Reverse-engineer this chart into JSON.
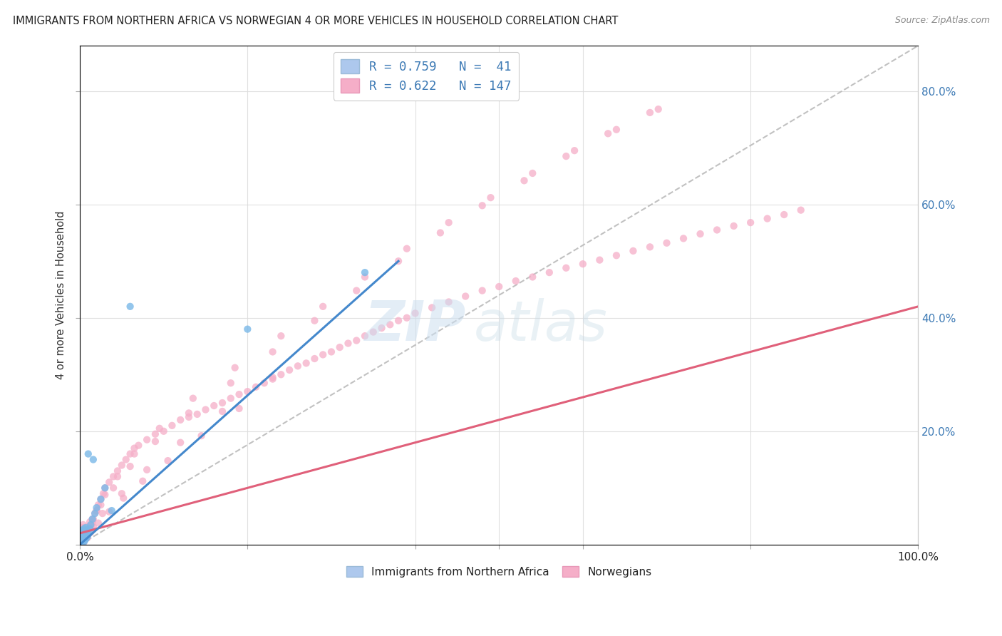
{
  "title": "IMMIGRANTS FROM NORTHERN AFRICA VS NORWEGIAN 4 OR MORE VEHICLES IN HOUSEHOLD CORRELATION CHART",
  "source": "Source: ZipAtlas.com",
  "ylabel": "4 or more Vehicles in Household",
  "yticks": [
    "",
    "20.0%",
    "40.0%",
    "60.0%",
    "80.0%"
  ],
  "ytick_vals": [
    0.0,
    0.2,
    0.4,
    0.6,
    0.8
  ],
  "xlim": [
    0,
    1.0
  ],
  "ylim": [
    0,
    0.88
  ],
  "legend1_label": "R = 0.759   N =  41",
  "legend2_label": "R = 0.622   N = 147",
  "legend_color1": "#adc8ed",
  "legend_color2": "#f5aec8",
  "scatter_color1": "#7ab8e8",
  "scatter_color2": "#f5aec8",
  "line_color1": "#4488cc",
  "line_color2": "#e0607a",
  "diagonal_color": "#bbbbbb",
  "watermark_zip": "ZIP",
  "watermark_atlas": "atlas",
  "background_color": "#ffffff",
  "immigrants_x": [
    0.001,
    0.001,
    0.002,
    0.002,
    0.002,
    0.003,
    0.003,
    0.003,
    0.003,
    0.004,
    0.004,
    0.004,
    0.005,
    0.005,
    0.005,
    0.005,
    0.006,
    0.006,
    0.006,
    0.007,
    0.007,
    0.007,
    0.008,
    0.008,
    0.009,
    0.009,
    0.01,
    0.01,
    0.011,
    0.012,
    0.013,
    0.015,
    0.016,
    0.018,
    0.02,
    0.025,
    0.03,
    0.038,
    0.06,
    0.2,
    0.34
  ],
  "immigrants_y": [
    0.005,
    0.01,
    0.005,
    0.01,
    0.02,
    0.005,
    0.01,
    0.015,
    0.025,
    0.008,
    0.015,
    0.022,
    0.005,
    0.012,
    0.018,
    0.028,
    0.008,
    0.015,
    0.025,
    0.01,
    0.018,
    0.03,
    0.012,
    0.02,
    0.015,
    0.025,
    0.018,
    0.16,
    0.022,
    0.028,
    0.035,
    0.045,
    0.15,
    0.055,
    0.065,
    0.08,
    0.1,
    0.06,
    0.42,
    0.38,
    0.48
  ],
  "norwegians_x": [
    0.001,
    0.001,
    0.002,
    0.002,
    0.002,
    0.003,
    0.003,
    0.003,
    0.004,
    0.004,
    0.004,
    0.005,
    0.005,
    0.005,
    0.006,
    0.006,
    0.007,
    0.007,
    0.008,
    0.008,
    0.009,
    0.009,
    0.01,
    0.01,
    0.011,
    0.012,
    0.013,
    0.014,
    0.015,
    0.016,
    0.018,
    0.02,
    0.022,
    0.025,
    0.028,
    0.03,
    0.035,
    0.04,
    0.045,
    0.05,
    0.055,
    0.06,
    0.065,
    0.07,
    0.08,
    0.09,
    0.1,
    0.11,
    0.12,
    0.13,
    0.14,
    0.15,
    0.16,
    0.17,
    0.18,
    0.19,
    0.2,
    0.21,
    0.22,
    0.23,
    0.24,
    0.25,
    0.26,
    0.27,
    0.28,
    0.29,
    0.3,
    0.31,
    0.32,
    0.33,
    0.34,
    0.35,
    0.36,
    0.37,
    0.38,
    0.39,
    0.4,
    0.42,
    0.44,
    0.46,
    0.48,
    0.5,
    0.52,
    0.54,
    0.56,
    0.58,
    0.6,
    0.62,
    0.64,
    0.66,
    0.68,
    0.7,
    0.72,
    0.74,
    0.76,
    0.78,
    0.8,
    0.82,
    0.84,
    0.86,
    0.003,
    0.006,
    0.01,
    0.015,
    0.025,
    0.04,
    0.06,
    0.09,
    0.13,
    0.18,
    0.23,
    0.28,
    0.33,
    0.38,
    0.43,
    0.48,
    0.53,
    0.58,
    0.63,
    0.68,
    0.004,
    0.007,
    0.012,
    0.02,
    0.03,
    0.045,
    0.065,
    0.095,
    0.135,
    0.185,
    0.24,
    0.29,
    0.34,
    0.39,
    0.44,
    0.49,
    0.54,
    0.59,
    0.64,
    0.69,
    0.005,
    0.008,
    0.013,
    0.022,
    0.035,
    0.052,
    0.075,
    0.105,
    0.145,
    0.19,
    0.009,
    0.016,
    0.027,
    0.05,
    0.08,
    0.12,
    0.17,
    0.23
  ],
  "norwegians_y": [
    0.005,
    0.015,
    0.008,
    0.018,
    0.03,
    0.005,
    0.015,
    0.025,
    0.01,
    0.02,
    0.035,
    0.008,
    0.018,
    0.03,
    0.012,
    0.025,
    0.01,
    0.022,
    0.015,
    0.028,
    0.012,
    0.025,
    0.018,
    0.032,
    0.02,
    0.025,
    0.03,
    0.035,
    0.04,
    0.045,
    0.055,
    0.06,
    0.07,
    0.08,
    0.09,
    0.1,
    0.11,
    0.12,
    0.13,
    0.14,
    0.15,
    0.16,
    0.17,
    0.175,
    0.185,
    0.195,
    0.2,
    0.21,
    0.22,
    0.225,
    0.23,
    0.238,
    0.245,
    0.25,
    0.258,
    0.265,
    0.27,
    0.278,
    0.285,
    0.292,
    0.3,
    0.308,
    0.315,
    0.32,
    0.328,
    0.335,
    0.34,
    0.348,
    0.355,
    0.36,
    0.368,
    0.375,
    0.382,
    0.388,
    0.395,
    0.4,
    0.408,
    0.418,
    0.428,
    0.438,
    0.448,
    0.455,
    0.465,
    0.472,
    0.48,
    0.488,
    0.495,
    0.502,
    0.51,
    0.518,
    0.525,
    0.532,
    0.54,
    0.548,
    0.555,
    0.562,
    0.568,
    0.575,
    0.582,
    0.59,
    0.008,
    0.018,
    0.03,
    0.045,
    0.07,
    0.1,
    0.138,
    0.182,
    0.232,
    0.285,
    0.34,
    0.395,
    0.448,
    0.5,
    0.55,
    0.598,
    0.642,
    0.685,
    0.725,
    0.762,
    0.012,
    0.025,
    0.04,
    0.06,
    0.088,
    0.12,
    0.16,
    0.205,
    0.258,
    0.312,
    0.368,
    0.42,
    0.472,
    0.522,
    0.568,
    0.612,
    0.655,
    0.695,
    0.732,
    0.768,
    0.005,
    0.012,
    0.022,
    0.038,
    0.058,
    0.082,
    0.112,
    0.148,
    0.192,
    0.24,
    0.015,
    0.032,
    0.055,
    0.09,
    0.132,
    0.18,
    0.235,
    0.295
  ],
  "blue_line_x": [
    0.0,
    0.38
  ],
  "blue_line_y": [
    0.0,
    0.5
  ],
  "pink_line_x": [
    0.0,
    1.0
  ],
  "pink_line_y": [
    0.02,
    0.42
  ],
  "diag_line_x": [
    0.0,
    1.0
  ],
  "diag_line_y": [
    0.0,
    0.88
  ]
}
